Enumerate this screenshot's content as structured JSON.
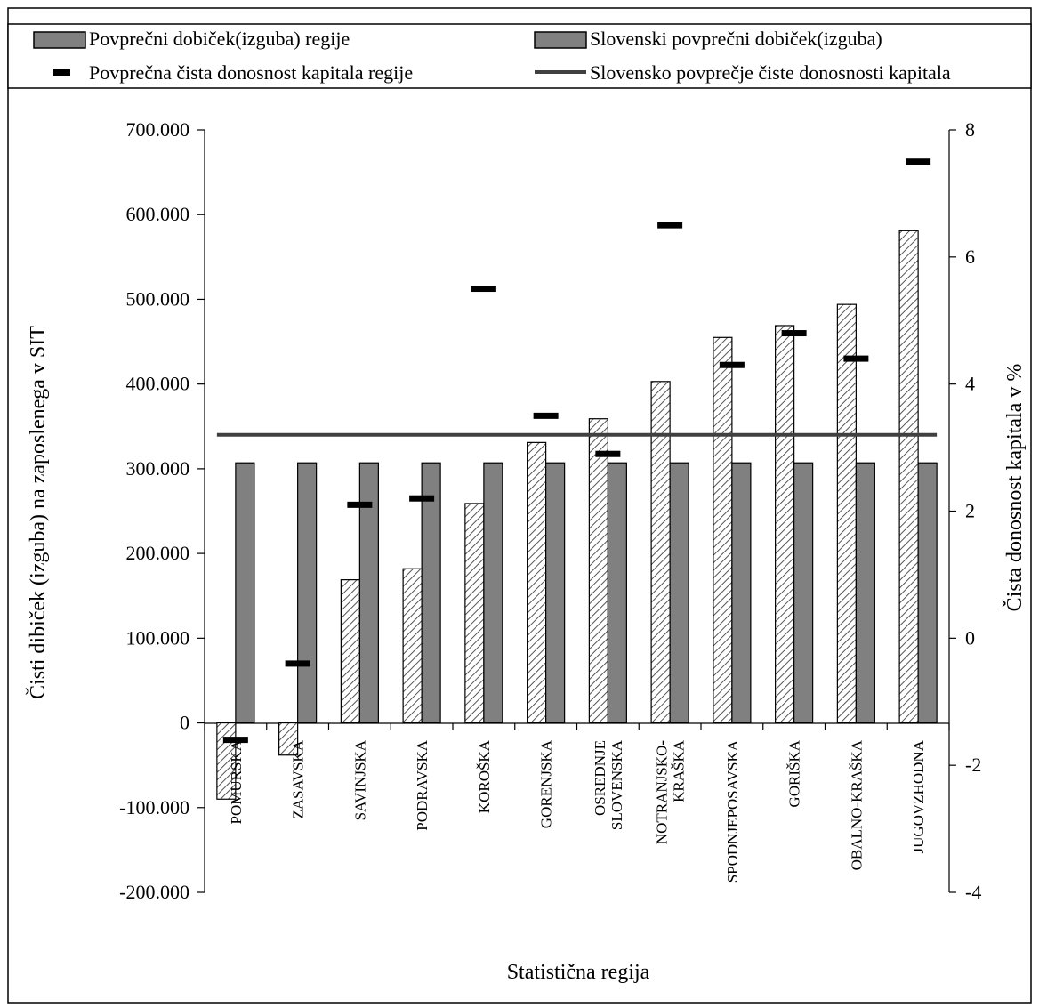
{
  "chart_data": {
    "type": "bar",
    "xlabel": "Statistična regija",
    "ylabel": "Čisti dibiček (izguba) na zaposlenega v SIT",
    "y2label": "Čista donosnost kapitala v %",
    "categories": [
      "POMURSKA",
      "ZASAVSKA",
      "SAVINJSKA",
      "PODRAVSKA",
      "KOROŠKA",
      "GORENJSKA",
      "OSREDNJE\nSLOVENSKA",
      "NOTRANJSKO-\nKRAŠKA",
      "SPODNJEPOSAVSKA",
      "GORIŠKA",
      "OBALNO-KRAŠKA",
      "JUGOVZHODNA"
    ],
    "series": [
      {
        "name": "Povprečni dobiček(izguba) regije",
        "type": "bar",
        "axis": "left",
        "style": "hatched",
        "values": [
          -90000,
          -38000,
          169000,
          182000,
          259000,
          331000,
          359000,
          403000,
          455000,
          469000,
          494000,
          581000
        ]
      },
      {
        "name": "Slovenski povprečni dobiček(izguba)",
        "type": "bar",
        "axis": "left",
        "style": "solid-gray",
        "values": [
          307000,
          307000,
          307000,
          307000,
          307000,
          307000,
          307000,
          307000,
          307000,
          307000,
          307000,
          307000
        ]
      },
      {
        "name": "Povprečna čista donosnost kapitala regije",
        "type": "marker",
        "axis": "right",
        "values": [
          -1.6,
          -0.4,
          2.1,
          2.2,
          5.5,
          3.5,
          2.9,
          6.5,
          4.3,
          4.8,
          4.4,
          7.5
        ]
      },
      {
        "name": "Slovensko povprečje čiste donosnosti kapitala",
        "type": "line",
        "axis": "right",
        "value": 3.2
      }
    ],
    "ylim": [
      -200000,
      700000
    ],
    "yticks": [
      "-200.000",
      "-100.000",
      "0",
      "100.000",
      "200.000",
      "300.000",
      "400.000",
      "500.000",
      "600.000",
      "700.000"
    ],
    "y2lim": [
      -4,
      8
    ],
    "y2ticks": [
      "-4",
      "-2",
      "0",
      "2",
      "4",
      "6",
      "8"
    ],
    "grid": false,
    "legend": "top",
    "colors": {
      "solid_bar": "#808080",
      "hatch_fill": "#ffffff",
      "hatch_line": "#555555",
      "avg_line": "#404040",
      "marker": "#000000"
    }
  }
}
